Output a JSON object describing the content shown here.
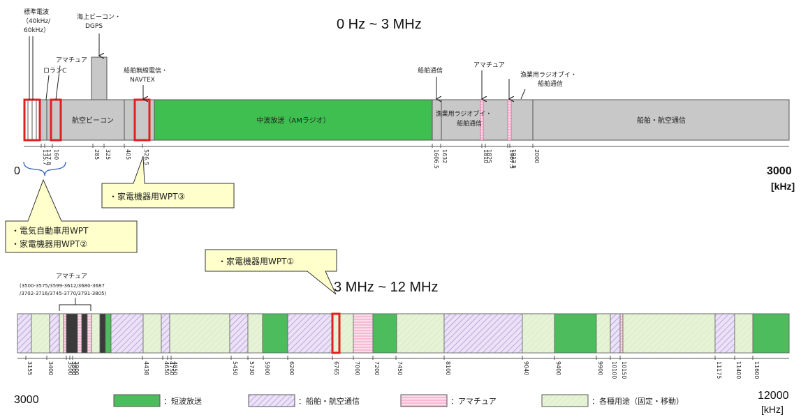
{
  "titles": {
    "upper": "0 Hz ~   3 MHz",
    "lower": "3 MHz ~   12 MHz"
  },
  "upper_axis": {
    "start": "0",
    "end": "3000",
    "unit": "[kHz]",
    "ticks": [
      "135.7",
      "137.8",
      "160",
      "285",
      "325",
      "405",
      "526.5",
      "1606.5",
      "1632",
      "1810",
      "1825",
      "1907.5",
      "1912.5",
      "2000"
    ]
  },
  "lower_axis": {
    "start": "3000",
    "end": "12000",
    "unit": "[kHz]",
    "ticks": [
      "3155",
      "3400",
      "3500",
      "3800",
      "3900",
      "4438",
      "4650",
      "4750",
      "4850",
      "5450",
      "5730",
      "5900",
      "6200",
      "6765",
      "7000",
      "7200",
      "7450",
      "8100",
      "9040",
      "9400",
      "9900",
      "10100",
      "10150",
      "11175",
      "11400",
      "11600"
    ]
  },
  "upper_band_labels": {
    "aviation_beacon": "航空ビーコン",
    "am_broadcast": "中波放送（AMラジオ）",
    "fishery_mid": "漁業用ラジオブイ・\n船舶通信",
    "ship_air": "船舶・航空通信"
  },
  "callouts": {
    "std_wave": "標準電波\n（40kHz/\n60kHz）",
    "marine_beacon": "海上ビーコン・\nDGPS",
    "amateur_1": "アマチュア",
    "loran": "ロランC",
    "navtex": "船舶無線電信・\nNAVTEX",
    "ship_comm": "船舶通信",
    "amateur_2": "アマチュア",
    "fishery": "漁業用ラジオブイ・\n船舶通信",
    "amateur_low": "アマチュア",
    "amateur_low_detail": "(3500-3575/3599-3612/3680-3687\n/3702-3716/3745-3770/3791-3805)"
  },
  "wpt": {
    "wpt3": "・家電機器用WPT③",
    "ev_wpt": "・電気自動車用WPT",
    "wpt2": "・家電機器用WPT②",
    "wpt1": "・家電機器用WPT①"
  },
  "legend": [
    {
      "label": "：短波放送",
      "color": "#4cbc5c",
      "kind": "shortwave"
    },
    {
      "label": "：船舶・航空通信",
      "color": "#d9c8f0",
      "kind": "marine"
    },
    {
      "label": "：アマチュア",
      "color": "#f6c8dc",
      "kind": "amateur"
    },
    {
      "label": "：各種用途（固定・移動）",
      "color": "#dcefc8",
      "kind": "fixed"
    }
  ],
  "colors": {
    "green": "#3fbf4f",
    "gray": "#c8c8c8",
    "red": "#e02020",
    "callout_fill": "#ffffcc"
  }
}
